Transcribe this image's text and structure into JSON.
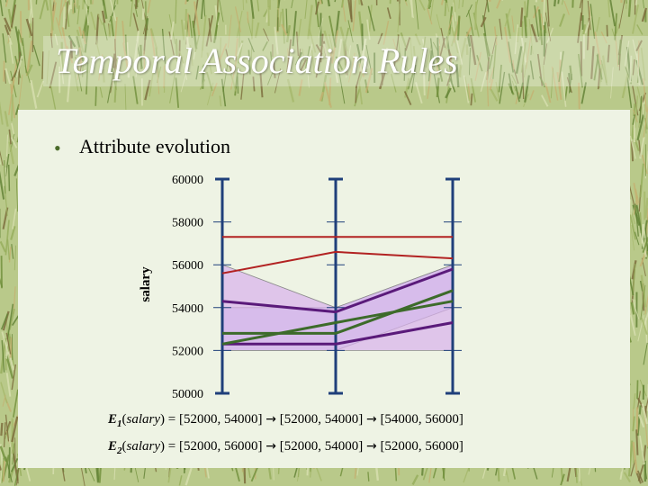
{
  "slide": {
    "title": "Temporal Association Rules",
    "bullet": "Attribute evolution"
  },
  "chart_data": {
    "type": "line",
    "ylabel": "salary",
    "ylim": [
      50000,
      60000
    ],
    "yticks": [
      50000,
      52000,
      54000,
      56000,
      58000,
      60000
    ],
    "time_points": 3,
    "grid": false,
    "bands": [
      {
        "id": "E1",
        "color": "#c8c8ea",
        "lower": [
          52000,
          52000,
          54000
        ],
        "upper": [
          54000,
          54000,
          56000
        ]
      },
      {
        "id": "E2",
        "color": "#d8b0ec",
        "lower": [
          52000,
          52000,
          52000
        ],
        "upper": [
          56000,
          54000,
          56000
        ]
      }
    ],
    "series": [
      {
        "color": "#b22222",
        "width": 2,
        "values": [
          57300,
          57300,
          57300
        ]
      },
      {
        "color": "#b22222",
        "width": 2,
        "values": [
          55600,
          56600,
          56300
        ]
      },
      {
        "color": "#5a1a7a",
        "width": 3,
        "values": [
          54300,
          53800,
          55800
        ]
      },
      {
        "color": "#5a1a7a",
        "width": 3,
        "values": [
          52300,
          52300,
          53300
        ]
      },
      {
        "color": "#3d6b2a",
        "width": 3,
        "values": [
          52800,
          52800,
          54800
        ]
      },
      {
        "color": "#3d6b2a",
        "width": 3,
        "values": [
          52300,
          53300,
          54300
        ]
      }
    ]
  },
  "formulas": {
    "e1": {
      "event": "E",
      "sub": "1",
      "attr": "salary",
      "expr": ") = [52000, 54000] ",
      "arrow": "→",
      "mid": " [52000, 54000] ",
      "arrow2": "→",
      "end": " [54000, 56000]"
    },
    "e2": {
      "event": "E",
      "sub": "2",
      "attr": "salary",
      "expr": ") = [52000, 56000] ",
      "arrow": "→",
      "mid": " [52000, 54000] ",
      "arrow2": "→",
      "end": " [52000, 56000]"
    }
  },
  "colors": {
    "axis": "#1f3f7a",
    "panel": "#eef3e4",
    "grass_dark": "#7e9a4a",
    "grass_light": "#c8d59a"
  }
}
